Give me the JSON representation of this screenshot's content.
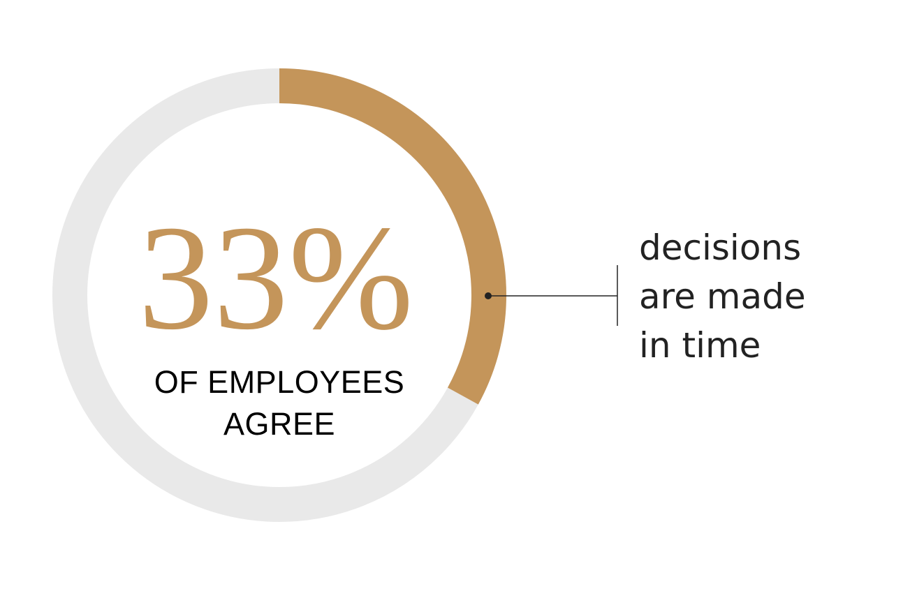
{
  "chart_data": {
    "type": "donut",
    "values": [
      33
    ],
    "value_labels": [
      "33%"
    ],
    "color": "#c4955a",
    "track_color": "#e9e9e9",
    "subtitle": "OF EMPLOYEES AGREE",
    "annotation": "decisions are made in time"
  }
}
